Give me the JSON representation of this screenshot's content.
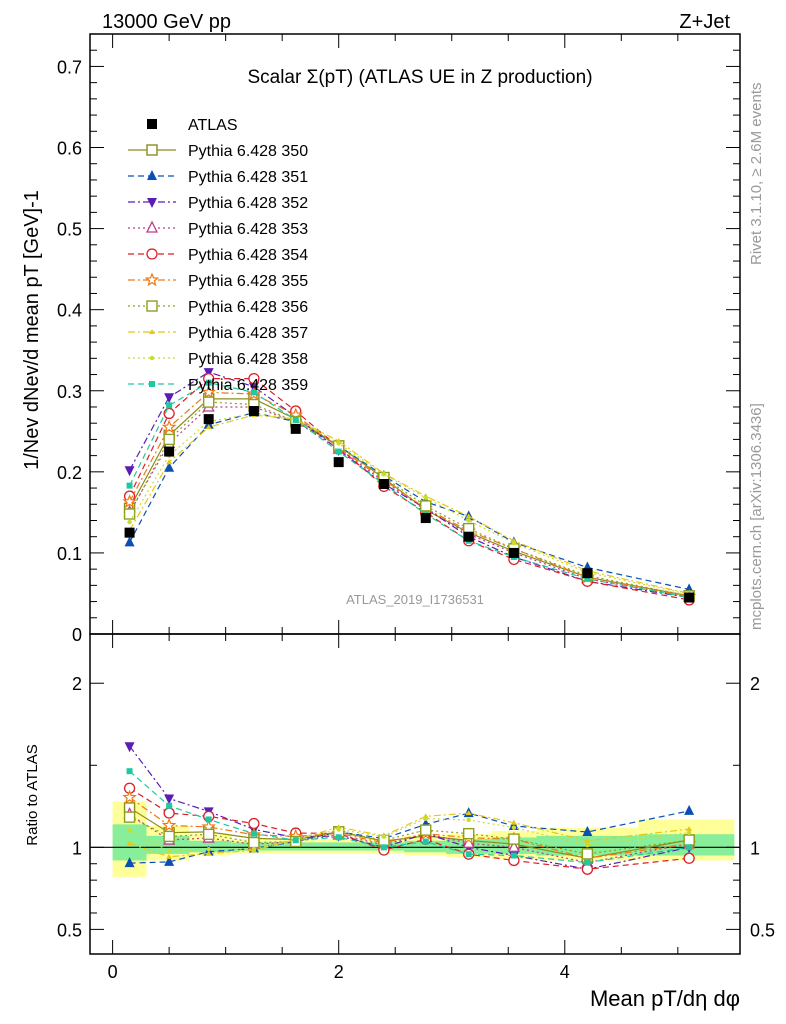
{
  "header": {
    "energy": "13000 GeV pp",
    "process": "Z+Jet",
    "side_top": "Rivet 3.1.10, ≥ 2.6M events",
    "side_bottom": "mcplots.cern.ch [arXiv:1306.3436]"
  },
  "chart_data": [
    {
      "type": "line",
      "title": "Scalar Σ(pT) (ATLAS UE in Z production)",
      "watermark": "ATLAS_2019_I1736531",
      "ylabel": "1/Nev dNev/d mean pT [GeV]-1",
      "xlabel": "Mean pT/dη dφ",
      "xlim": [
        -0.2,
        5.55
      ],
      "ylim": [
        0,
        0.74
      ],
      "x_ticks": [
        "0",
        "2",
        "4"
      ],
      "y_ticks": [
        "0",
        "0.1",
        "0.2",
        "0.3",
        "0.4",
        "0.5",
        "0.6",
        "0.7"
      ],
      "x": [
        0.15,
        0.5,
        0.85,
        1.25,
        1.62,
        2.0,
        2.4,
        2.77,
        3.15,
        3.55,
        4.2,
        5.1
      ],
      "data": {
        "name": "ATLAS",
        "values": [
          0.125,
          0.225,
          0.265,
          0.275,
          0.253,
          0.212,
          0.185,
          0.143,
          0.12,
          0.1,
          0.075,
          0.045
        ]
      },
      "series": [
        {
          "name": "Pythia 6.428 350",
          "color": "#8c8c1e",
          "marker": "square-open",
          "dash": "solid",
          "values": [
            0.155,
            0.245,
            0.29,
            0.29,
            0.265,
            0.232,
            0.192,
            0.153,
            0.125,
            0.102,
            0.07,
            0.047
          ]
        },
        {
          "name": "Pythia 6.428 351",
          "color": "#0a50b4",
          "marker": "triangle-up",
          "dash": "dash",
          "values": [
            0.113,
            0.205,
            0.258,
            0.273,
            0.262,
            0.232,
            0.195,
            0.163,
            0.145,
            0.113,
            0.082,
            0.055
          ]
        },
        {
          "name": "Pythia 6.428 352",
          "color": "#5a1eb4",
          "marker": "triangle-down",
          "dash": "dashdot",
          "values": [
            0.202,
            0.292,
            0.323,
            0.305,
            0.268,
            0.227,
            0.185,
            0.155,
            0.12,
            0.095,
            0.065,
            0.045
          ]
        },
        {
          "name": "Pythia 6.428 353",
          "color": "#be3c8c",
          "marker": "triangle-open",
          "dash": "dot",
          "values": [
            0.15,
            0.235,
            0.28,
            0.28,
            0.262,
            0.228,
            0.188,
            0.155,
            0.123,
            0.1,
            0.068,
            0.046
          ]
        },
        {
          "name": "Pythia 6.428 354",
          "color": "#dc1e28",
          "marker": "circle-open",
          "dash": "dash",
          "values": [
            0.17,
            0.272,
            0.315,
            0.315,
            0.275,
            0.23,
            0.182,
            0.15,
            0.115,
            0.092,
            0.065,
            0.042
          ]
        },
        {
          "name": "Pythia 6.428 355",
          "color": "#f07814",
          "marker": "star-open",
          "dash": "dashdot",
          "values": [
            0.163,
            0.255,
            0.298,
            0.296,
            0.27,
            0.23,
            0.19,
            0.155,
            0.127,
            0.105,
            0.07,
            0.046
          ]
        },
        {
          "name": "Pythia 6.428 356",
          "color": "#8ca01e",
          "marker": "square-open",
          "dash": "dot",
          "values": [
            0.148,
            0.24,
            0.286,
            0.283,
            0.262,
            0.232,
            0.193,
            0.158,
            0.13,
            0.105,
            0.072,
            0.047
          ]
        },
        {
          "name": "Pythia 6.428 357",
          "color": "#e6c814",
          "marker": "tri-small",
          "dash": "dashdot",
          "values": [
            0.128,
            0.212,
            0.255,
            0.27,
            0.265,
            0.238,
            0.198,
            0.17,
            0.145,
            0.115,
            0.078,
            0.05
          ]
        },
        {
          "name": "Pythia 6.428 358",
          "color": "#c8dc32",
          "marker": "dot-small",
          "dash": "dot",
          "values": [
            0.138,
            0.22,
            0.262,
            0.272,
            0.265,
            0.235,
            0.197,
            0.168,
            0.14,
            0.112,
            0.076,
            0.049
          ]
        },
        {
          "name": "Pythia 6.428 359",
          "color": "#1ec8a0",
          "marker": "square-small",
          "dash": "dash",
          "values": [
            0.183,
            0.282,
            0.31,
            0.298,
            0.264,
            0.225,
            0.185,
            0.148,
            0.115,
            0.095,
            0.068,
            0.045
          ]
        }
      ]
    },
    {
      "type": "line",
      "ylabel": "Ratio to ATLAS",
      "ylim": [
        0.35,
        2.3
      ],
      "y_ticks": [
        "0.5",
        "1",
        "2"
      ],
      "bands": {
        "yellow": [
          [
            0.82,
            1.28
          ],
          [
            0.92,
            1.13
          ],
          [
            0.95,
            1.08
          ],
          [
            0.96,
            1.05
          ],
          [
            0.96,
            1.05
          ],
          [
            0.96,
            1.05
          ],
          [
            0.96,
            1.05
          ],
          [
            0.95,
            1.07
          ],
          [
            0.94,
            1.08
          ],
          [
            0.93,
            1.1
          ],
          [
            0.92,
            1.12
          ],
          [
            0.92,
            1.17
          ]
        ],
        "green": [
          [
            0.92,
            1.14
          ],
          [
            0.96,
            1.07
          ],
          [
            0.97,
            1.04
          ],
          [
            0.98,
            1.03
          ],
          [
            0.98,
            1.03
          ],
          [
            0.98,
            1.03
          ],
          [
            0.98,
            1.03
          ],
          [
            0.97,
            1.04
          ],
          [
            0.96,
            1.05
          ],
          [
            0.96,
            1.06
          ],
          [
            0.95,
            1.07
          ],
          [
            0.95,
            1.08
          ]
        ]
      }
    }
  ]
}
